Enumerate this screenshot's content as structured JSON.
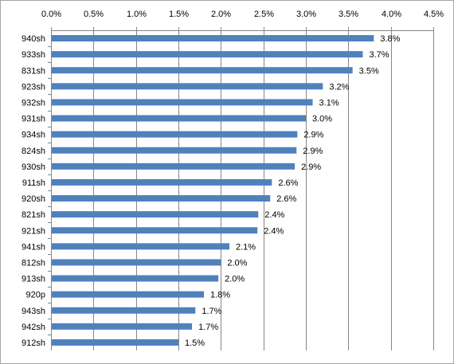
{
  "chart_data": {
    "type": "bar",
    "orientation": "horizontal",
    "title": "",
    "xlabel": "",
    "ylabel": "",
    "xlim": [
      0,
      4.5
    ],
    "x_ticks": [
      "0.0%",
      "0.5%",
      "1.0%",
      "1.5%",
      "2.0%",
      "2.5%",
      "3.0%",
      "3.5%",
      "4.0%",
      "4.5%"
    ],
    "x_tick_values": [
      0,
      0.5,
      1.0,
      1.5,
      2.0,
      2.5,
      3.0,
      3.5,
      4.0,
      4.5
    ],
    "x_axis_position": "top",
    "grid": "vertical",
    "legend": "none",
    "bar_color": "#4f81bd",
    "categories": [
      "940sh",
      "933sh",
      "831sh",
      "923sh",
      "932sh",
      "931sh",
      "934sh",
      "824sh",
      "930sh",
      "911sh",
      "920sh",
      "821sh",
      "921sh",
      "941sh",
      "812sh",
      "913sh",
      "920p",
      "943sh",
      "942sh",
      "912sh"
    ],
    "values": [
      3.8,
      3.67,
      3.55,
      3.2,
      3.08,
      3.0,
      2.9,
      2.89,
      2.87,
      2.6,
      2.58,
      2.44,
      2.43,
      2.1,
      2.0,
      1.97,
      1.8,
      1.7,
      1.66,
      1.5
    ],
    "data_labels": [
      "3.8%",
      "3.7%",
      "3.5%",
      "3.2%",
      "3.1%",
      "3.0%",
      "2.9%",
      "2.9%",
      "2.9%",
      "2.6%",
      "2.6%",
      "2.4%",
      "2.4%",
      "2.1%",
      "2.0%",
      "2.0%",
      "1.8%",
      "1.7%",
      "1.7%",
      "1.5%"
    ]
  }
}
